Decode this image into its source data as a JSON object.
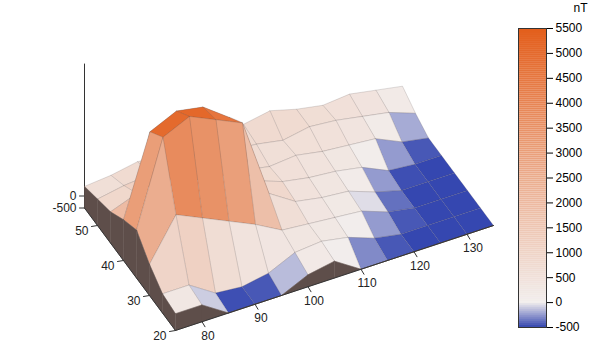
{
  "chart_data": {
    "type": "surface",
    "x": [
      75,
      80,
      85,
      90,
      95,
      100,
      105,
      110,
      115,
      120,
      125,
      130,
      135
    ],
    "y": [
      20,
      25,
      30,
      35,
      40,
      45,
      50,
      55
    ],
    "z": [
      [
        200,
        200,
        -500,
        -500,
        -500,
        0,
        200,
        -500,
        -500,
        -500,
        -500,
        -500,
        -500
      ],
      [
        300,
        300,
        -400,
        -500,
        -300,
        200,
        300,
        100,
        -300,
        -500,
        -500,
        -500,
        -500
      ],
      [
        800,
        2500,
        2000,
        1500,
        1000,
        400,
        300,
        200,
        100,
        -300,
        -500,
        -500,
        -500
      ],
      [
        1500,
        5000,
        5500,
        5000,
        4500,
        1200,
        500,
        300,
        200,
        -200,
        -500,
        -500,
        -500
      ],
      [
        1200,
        4500,
        5000,
        4800,
        4000,
        1000,
        600,
        400,
        300,
        100,
        -400,
        -500,
        -500
      ],
      [
        800,
        1200,
        1500,
        1000,
        800,
        700,
        500,
        600,
        400,
        300,
        200,
        -300,
        -500
      ],
      [
        600,
        800,
        900,
        700,
        600,
        800,
        700,
        500,
        700,
        600,
        400,
        200,
        -200
      ],
      [
        400,
        500,
        700,
        600,
        500,
        600,
        800,
        1000,
        700,
        500,
        600,
        400,
        200
      ]
    ],
    "xlim": [
      75,
      135
    ],
    "xticks": [
      80,
      90,
      100,
      110,
      120,
      130
    ],
    "ylim": [
      20,
      55
    ],
    "yticks": [
      20,
      30,
      40,
      50
    ],
    "zlim": [
      -500,
      5500
    ],
    "zticks": [
      -500,
      0
    ],
    "colorbar": {
      "label": "nT",
      "lim": [
        -500,
        5500
      ],
      "ticks": [
        -500,
        0,
        500,
        1000,
        1500,
        2000,
        2500,
        3000,
        3500,
        4000,
        4500,
        5000,
        5500
      ],
      "stops": [
        -500,
        0,
        5500
      ],
      "colors": [
        "#3547b0",
        "#f2eeed",
        "#e35d1a"
      ]
    }
  }
}
